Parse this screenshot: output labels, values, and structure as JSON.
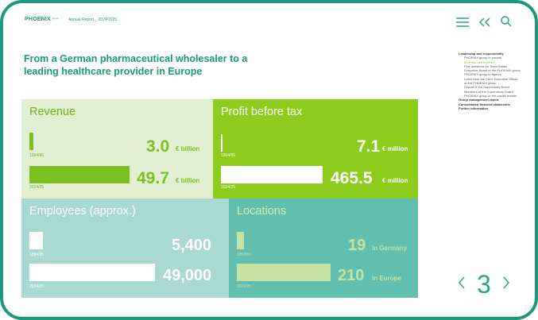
{
  "header": {
    "logo_text": "PHOENIX",
    "logo_sup": "group",
    "doc_title": "Annual Report _ 2024/2025",
    "icons": [
      "menu-icon",
      "collapse-icon",
      "search-icon"
    ]
  },
  "headline": "From a German pharmaceutical wholesaler to a leading healthcare provider in Europe",
  "tiles": {
    "revenue": {
      "title": "Revenue",
      "year_old": "1994/95",
      "year_new": "2024/25",
      "value_old": "3.0",
      "unit_old": "€ billion",
      "value_new": "49.7",
      "unit_new": "€ billion",
      "bg": "#e2efd1"
    },
    "profit": {
      "title": "Profit before tax",
      "year_old": "1994/95",
      "year_new": "2024/25",
      "value_old": "7.1",
      "unit_old": "€ million",
      "value_new": "465.5",
      "unit_new": "€ million",
      "bg": "#8ccc1c"
    },
    "employees": {
      "title": "Employees (approx.)",
      "year_old": "1994/95",
      "year_new": "2024/25",
      "value_old": "5,400",
      "value_new": "49,000",
      "bg": "#a8d9d1"
    },
    "locations": {
      "title": "Locations",
      "year_old": "1994/95",
      "year_new": "2024/25",
      "value_old": "19",
      "unit_old": "in Germany",
      "value_new": "210",
      "unit_new": "in Europe",
      "bg": "#62bfb0"
    }
  },
  "toc": [
    {
      "text": "Leadership and responsibility",
      "type": "sec"
    },
    {
      "text": "PHOENIX group in portrait",
      "type": "sub"
    },
    {
      "text": "30 years of PHOENIX",
      "type": "sub active"
    },
    {
      "text": "Five questions for Sven Seidel",
      "type": "sub"
    },
    {
      "text": "Executive Board of the PHOENIX group",
      "type": "sub"
    },
    {
      "text": "PHOENIX group in figures",
      "type": "sub"
    },
    {
      "text": "Letter from the Chief Executive Officer",
      "type": "sub"
    },
    {
      "text": "of the PHOENIX group",
      "type": "sub"
    },
    {
      "text": "Report of the Supervisory Board",
      "type": "sub"
    },
    {
      "text": "Members of the Supervisory Board",
      "type": "sub"
    },
    {
      "text": "PHOENIX group in the capital market",
      "type": "sub"
    },
    {
      "text": "Group management report",
      "type": "sec"
    },
    {
      "text": "Consolidated financial statements",
      "type": "sec"
    },
    {
      "text": "Further information",
      "type": "sec"
    }
  ],
  "pager": {
    "page": "3",
    "prev_icon": "chevron-left-icon",
    "next_icon": "chevron-right-icon"
  }
}
